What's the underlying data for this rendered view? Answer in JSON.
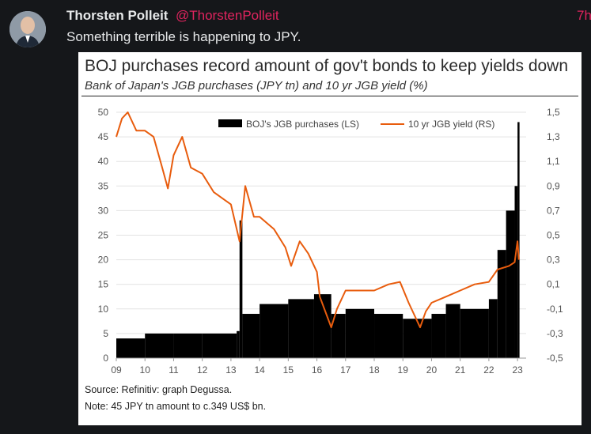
{
  "tweet": {
    "author_name": "Thorsten Polleit",
    "author_handle": "@ThorstenPolleit",
    "timestamp": "7h",
    "text": "Something terrible is happening to JPY."
  },
  "chart_data": {
    "type": "bar",
    "title": "BOJ purchases record amount of gov't bonds to keep yields down",
    "subtitle": "Bank of Japan's JGB purchases (JPY tn) and 10 yr JGB yield (%)",
    "source": "Source: Refinitiv: graph Degussa.",
    "note": "Note: 45 JPY tn amount to c.349 US$ bn.",
    "x_ticks": [
      "09",
      "10",
      "11",
      "12",
      "13",
      "14",
      "15",
      "16",
      "17",
      "18",
      "19",
      "20",
      "21",
      "22",
      "23"
    ],
    "x_range": [
      2009,
      2023.3
    ],
    "left_axis": {
      "ticks": [
        "0",
        "5",
        "10",
        "15",
        "20",
        "25",
        "30",
        "35",
        "40",
        "45",
        "50"
      ],
      "range": [
        0,
        50
      ]
    },
    "right_axis": {
      "ticks": [
        "-0,5",
        "-0,3",
        "-0,1",
        "0,1",
        "0,3",
        "0,5",
        "0,7",
        "0,9",
        "1,1",
        "1,3",
        "1,5"
      ],
      "range": [
        -0.5,
        1.5
      ]
    },
    "legend_placement": "top",
    "series": [
      {
        "name": "BOJ's JGB purchases (LS)",
        "kind": "bar",
        "axis": "left",
        "color": "#000000",
        "points": [
          [
            2009.0,
            4
          ],
          [
            2010.0,
            5
          ],
          [
            2011.0,
            5
          ],
          [
            2012.0,
            5
          ],
          [
            2013.2,
            5.5
          ],
          [
            2013.3,
            28
          ],
          [
            2013.4,
            9
          ],
          [
            2014.0,
            11
          ],
          [
            2015.0,
            12
          ],
          [
            2015.9,
            13
          ],
          [
            2016.5,
            9
          ],
          [
            2017.0,
            10
          ],
          [
            2018.0,
            9
          ],
          [
            2019.0,
            8
          ],
          [
            2020.0,
            9
          ],
          [
            2020.5,
            11
          ],
          [
            2021.0,
            10
          ],
          [
            2022.0,
            12
          ],
          [
            2022.3,
            22
          ],
          [
            2022.6,
            30
          ],
          [
            2022.9,
            35
          ],
          [
            2023.0,
            48
          ]
        ]
      },
      {
        "name": "10 yr JGB yield (RS)",
        "kind": "line",
        "axis": "right",
        "color": "#e85c0d",
        "points": [
          [
            2009.0,
            1.3
          ],
          [
            2009.2,
            1.45
          ],
          [
            2009.4,
            1.5
          ],
          [
            2009.7,
            1.35
          ],
          [
            2010.0,
            1.35
          ],
          [
            2010.3,
            1.3
          ],
          [
            2010.6,
            1.05
          ],
          [
            2010.8,
            0.88
          ],
          [
            2011.0,
            1.15
          ],
          [
            2011.3,
            1.3
          ],
          [
            2011.6,
            1.05
          ],
          [
            2012.0,
            1.0
          ],
          [
            2012.4,
            0.85
          ],
          [
            2012.7,
            0.8
          ],
          [
            2013.0,
            0.75
          ],
          [
            2013.3,
            0.45
          ],
          [
            2013.5,
            0.9
          ],
          [
            2013.8,
            0.65
          ],
          [
            2014.0,
            0.65
          ],
          [
            2014.5,
            0.55
          ],
          [
            2014.9,
            0.4
          ],
          [
            2015.1,
            0.25
          ],
          [
            2015.4,
            0.45
          ],
          [
            2015.7,
            0.35
          ],
          [
            2016.0,
            0.2
          ],
          [
            2016.1,
            0.0
          ],
          [
            2016.5,
            -0.25
          ],
          [
            2016.7,
            -0.1
          ],
          [
            2017.0,
            0.05
          ],
          [
            2017.5,
            0.05
          ],
          [
            2018.0,
            0.05
          ],
          [
            2018.5,
            0.1
          ],
          [
            2018.9,
            0.12
          ],
          [
            2019.2,
            -0.05
          ],
          [
            2019.6,
            -0.25
          ],
          [
            2019.8,
            -0.12
          ],
          [
            2020.0,
            -0.05
          ],
          [
            2020.5,
            0.0
          ],
          [
            2021.0,
            0.05
          ],
          [
            2021.5,
            0.1
          ],
          [
            2022.0,
            0.12
          ],
          [
            2022.3,
            0.22
          ],
          [
            2022.7,
            0.25
          ],
          [
            2022.9,
            0.28
          ],
          [
            2023.0,
            0.45
          ],
          [
            2023.05,
            0.3
          ]
        ]
      }
    ]
  }
}
